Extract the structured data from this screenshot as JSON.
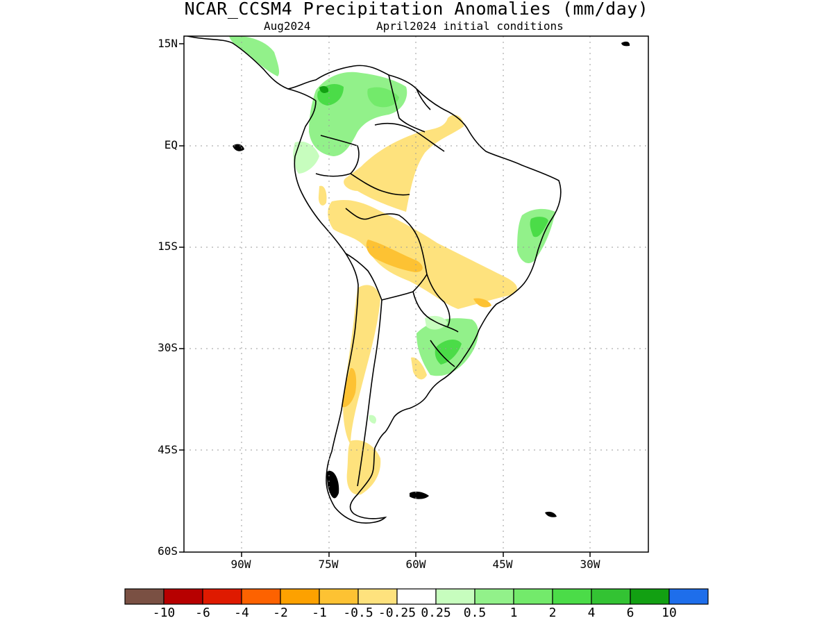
{
  "title": "NCAR_CCSM4 Precipitation Anomalies (mm/day)",
  "subtitle_left": "Aug2024",
  "subtitle_right": "April2024 initial conditions",
  "lat_labels": [
    "15N",
    "EQ",
    "15S",
    "30S",
    "45S",
    "60S"
  ],
  "lon_labels": [
    "90W",
    "75W",
    "60W",
    "45W",
    "30W"
  ],
  "colorbar": {
    "colors": [
      "#7a5043",
      "#b70000",
      "#df1a00",
      "#fd6200",
      "#fda100",
      "#fdc233",
      "#fee27d",
      "#ffffff",
      "#c7fdbe",
      "#92f18a",
      "#73ea6b",
      "#4bdc48",
      "#33c333",
      "#12a012",
      "#1e6eeb"
    ],
    "labels": [
      "-10",
      "-6",
      "-4",
      "-2",
      "-1",
      "-0.5",
      "-0.25",
      "0.25",
      "0.5",
      "1",
      "2",
      "4",
      "6",
      "10"
    ]
  }
}
